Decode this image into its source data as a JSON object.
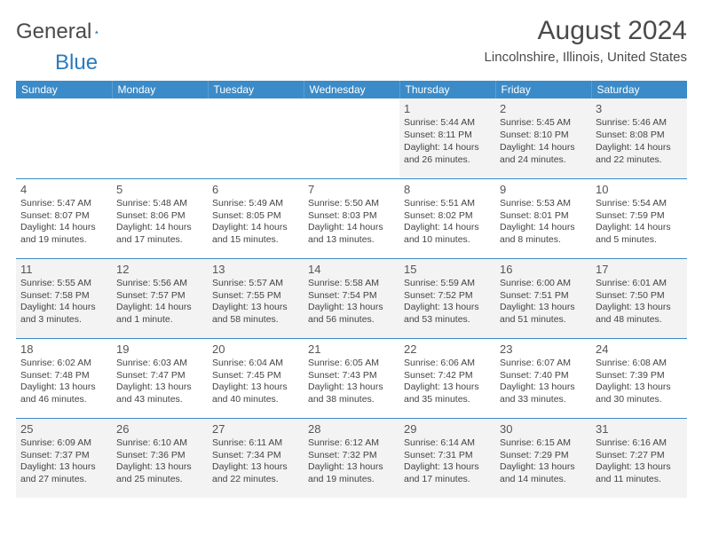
{
  "brand": {
    "general": "General",
    "blue": "Blue"
  },
  "title": "August 2024",
  "location": "Lincolnshire, Illinois, United States",
  "colors": {
    "header_bg": "#3b8bc8",
    "header_text": "#ffffff",
    "row_alt_bg": "#f3f3f3",
    "row_bg": "#ffffff",
    "border": "#3b8bc8",
    "text": "#444444",
    "logo_blue": "#2a7bbd"
  },
  "day_headers": [
    "Sunday",
    "Monday",
    "Tuesday",
    "Wednesday",
    "Thursday",
    "Friday",
    "Saturday"
  ],
  "weeks": [
    [
      null,
      null,
      null,
      null,
      {
        "n": "1",
        "r": "5:44 AM",
        "s": "8:11 PM",
        "d": "14 hours and 26 minutes."
      },
      {
        "n": "2",
        "r": "5:45 AM",
        "s": "8:10 PM",
        "d": "14 hours and 24 minutes."
      },
      {
        "n": "3",
        "r": "5:46 AM",
        "s": "8:08 PM",
        "d": "14 hours and 22 minutes."
      }
    ],
    [
      {
        "n": "4",
        "r": "5:47 AM",
        "s": "8:07 PM",
        "d": "14 hours and 19 minutes."
      },
      {
        "n": "5",
        "r": "5:48 AM",
        "s": "8:06 PM",
        "d": "14 hours and 17 minutes."
      },
      {
        "n": "6",
        "r": "5:49 AM",
        "s": "8:05 PM",
        "d": "14 hours and 15 minutes."
      },
      {
        "n": "7",
        "r": "5:50 AM",
        "s": "8:03 PM",
        "d": "14 hours and 13 minutes."
      },
      {
        "n": "8",
        "r": "5:51 AM",
        "s": "8:02 PM",
        "d": "14 hours and 10 minutes."
      },
      {
        "n": "9",
        "r": "5:53 AM",
        "s": "8:01 PM",
        "d": "14 hours and 8 minutes."
      },
      {
        "n": "10",
        "r": "5:54 AM",
        "s": "7:59 PM",
        "d": "14 hours and 5 minutes."
      }
    ],
    [
      {
        "n": "11",
        "r": "5:55 AM",
        "s": "7:58 PM",
        "d": "14 hours and 3 minutes."
      },
      {
        "n": "12",
        "r": "5:56 AM",
        "s": "7:57 PM",
        "d": "14 hours and 1 minute."
      },
      {
        "n": "13",
        "r": "5:57 AM",
        "s": "7:55 PM",
        "d": "13 hours and 58 minutes."
      },
      {
        "n": "14",
        "r": "5:58 AM",
        "s": "7:54 PM",
        "d": "13 hours and 56 minutes."
      },
      {
        "n": "15",
        "r": "5:59 AM",
        "s": "7:52 PM",
        "d": "13 hours and 53 minutes."
      },
      {
        "n": "16",
        "r": "6:00 AM",
        "s": "7:51 PM",
        "d": "13 hours and 51 minutes."
      },
      {
        "n": "17",
        "r": "6:01 AM",
        "s": "7:50 PM",
        "d": "13 hours and 48 minutes."
      }
    ],
    [
      {
        "n": "18",
        "r": "6:02 AM",
        "s": "7:48 PM",
        "d": "13 hours and 46 minutes."
      },
      {
        "n": "19",
        "r": "6:03 AM",
        "s": "7:47 PM",
        "d": "13 hours and 43 minutes."
      },
      {
        "n": "20",
        "r": "6:04 AM",
        "s": "7:45 PM",
        "d": "13 hours and 40 minutes."
      },
      {
        "n": "21",
        "r": "6:05 AM",
        "s": "7:43 PM",
        "d": "13 hours and 38 minutes."
      },
      {
        "n": "22",
        "r": "6:06 AM",
        "s": "7:42 PM",
        "d": "13 hours and 35 minutes."
      },
      {
        "n": "23",
        "r": "6:07 AM",
        "s": "7:40 PM",
        "d": "13 hours and 33 minutes."
      },
      {
        "n": "24",
        "r": "6:08 AM",
        "s": "7:39 PM",
        "d": "13 hours and 30 minutes."
      }
    ],
    [
      {
        "n": "25",
        "r": "6:09 AM",
        "s": "7:37 PM",
        "d": "13 hours and 27 minutes."
      },
      {
        "n": "26",
        "r": "6:10 AM",
        "s": "7:36 PM",
        "d": "13 hours and 25 minutes."
      },
      {
        "n": "27",
        "r": "6:11 AM",
        "s": "7:34 PM",
        "d": "13 hours and 22 minutes."
      },
      {
        "n": "28",
        "r": "6:12 AM",
        "s": "7:32 PM",
        "d": "13 hours and 19 minutes."
      },
      {
        "n": "29",
        "r": "6:14 AM",
        "s": "7:31 PM",
        "d": "13 hours and 17 minutes."
      },
      {
        "n": "30",
        "r": "6:15 AM",
        "s": "7:29 PM",
        "d": "13 hours and 14 minutes."
      },
      {
        "n": "31",
        "r": "6:16 AM",
        "s": "7:27 PM",
        "d": "13 hours and 11 minutes."
      }
    ]
  ],
  "labels": {
    "sunrise": "Sunrise: ",
    "sunset": "Sunset: ",
    "daylight": "Daylight: "
  }
}
